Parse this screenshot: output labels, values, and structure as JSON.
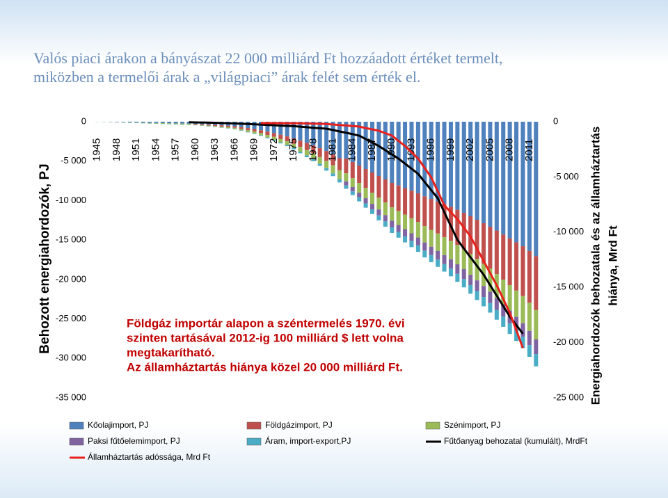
{
  "chart_data": {
    "type": "bar",
    "title": [
      "Valós piaci árakon a bányászat 22 000 milliárd Ft hozzáadott értéket termelt,",
      "miközben a termelői árak a „világpiaci” árak felét sem érték el."
    ],
    "y_label": "Behozott energiahordozók, PJ",
    "y2_label": [
      "Energiahordozók behozatala és az államháztartás",
      "hiánya, Mrd Ft"
    ],
    "annotation": [
      "Földgáz importár alapon a széntermelés 1970. évi",
      "szinten tartásával 2012-ig 100 milliárd $ lett volna",
      "megtakarítható.",
      "Az államháztartás hiánya közel 20 000 milliárd Ft."
    ],
    "categories": [
      "1945",
      null,
      null,
      "1948",
      null,
      null,
      "1951",
      null,
      null,
      "1954",
      null,
      null,
      "1957",
      null,
      null,
      "1960",
      null,
      null,
      "1963",
      null,
      null,
      "1966",
      null,
      null,
      "1969",
      null,
      null,
      "1972",
      null,
      null,
      "1975",
      null,
      null,
      "1978",
      null,
      null,
      "1981",
      null,
      null,
      "1984",
      null,
      null,
      "1987",
      null,
      null,
      "1990",
      null,
      null,
      "1993",
      null,
      null,
      "1996",
      null,
      null,
      "1999",
      null,
      null,
      "2002",
      null,
      null,
      "2005",
      null,
      null,
      "2008",
      null,
      null,
      "2011",
      null
    ],
    "ylim": [
      -35000,
      0
    ],
    "yticks": [
      0,
      {
        "value": -5000,
        "label": "-5 000"
      },
      {
        "value": -10000,
        "label": "-10 000"
      },
      {
        "value": -15000,
        "label": "-15 000"
      },
      {
        "value": -20000,
        "label": "-20 000"
      },
      {
        "value": -25000,
        "label": "-25 000"
      },
      {
        "value": -30000,
        "label": "-30 000"
      },
      {
        "value": -35000,
        "label": "-35 000"
      }
    ],
    "y2lim": [
      -25000,
      0
    ],
    "y2ticks": [
      0,
      {
        "value": -5000,
        "label": "-5 000"
      },
      {
        "value": -10000,
        "label": "-10 000"
      },
      {
        "value": -15000,
        "label": "-15 000"
      },
      {
        "value": -20000,
        "label": "-20 000"
      },
      {
        "value": -25000,
        "label": "-25 000"
      }
    ],
    "series": [
      {
        "name": "Kőolajimport, PJ",
        "color": "#4f81bd",
        "values": [
          -12,
          -24,
          -36,
          -54,
          -72,
          -90,
          -108,
          -126,
          -144,
          -162,
          -180,
          -198,
          -216,
          -234,
          -252,
          -270,
          -312,
          -360,
          -408,
          -462,
          -516,
          -576,
          -690,
          -810,
          -930,
          -1080,
          -1260,
          -1440,
          -1650,
          -1860,
          -2100,
          -2400,
          -2700,
          -3000,
          -3360,
          -3720,
          -4140,
          -4620,
          -4675,
          -5115,
          -5555,
          -5995,
          -6435,
          -6875,
          -7315,
          -7755,
          -8085,
          -8415,
          -8745,
          -9075,
          -9460,
          -9790,
          -10120,
          -10450,
          -10780,
          -11165,
          -11550,
          -11990,
          -12430,
          -12870,
          -13310,
          -13805,
          -14300,
          -14795,
          -15290,
          -15785,
          -16390,
          -17050
        ]
      },
      {
        "name": "Földgázimport, PJ",
        "color": "#c0504d",
        "values": [
          0,
          0,
          0,
          0,
          0,
          0,
          0,
          0,
          0,
          0,
          0,
          0,
          0,
          0,
          0,
          -90,
          -104,
          -120,
          -136,
          -154,
          -172,
          -192,
          -230,
          -270,
          -310,
          -360,
          -420,
          -480,
          -550,
          -620,
          -700,
          -800,
          -900,
          -1000,
          -1120,
          -1240,
          -1380,
          -1540,
          -1870,
          -2046,
          -2222,
          -2398,
          -2574,
          -2750,
          -2926,
          -3102,
          -3234,
          -3366,
          -3498,
          -3630,
          -3784,
          -3916,
          -4048,
          -4180,
          -4312,
          -4466,
          -4620,
          -4796,
          -4972,
          -5148,
          -5324,
          -5522,
          -5720,
          -5918,
          -6116,
          -6314,
          -6556,
          -6820
        ]
      },
      {
        "name": "Szénimport, PJ",
        "color": "#9bbb59",
        "values": [
          -6,
          -12,
          -18,
          -27,
          -36,
          -45,
          -54,
          -63,
          -72,
          -81,
          -90,
          -99,
          -108,
          -117,
          -126,
          -68,
          -78,
          -90,
          -102,
          -116,
          -129,
          -144,
          -172,
          -202,
          -232,
          -270,
          -315,
          -360,
          -412,
          -465,
          -525,
          -600,
          -675,
          -750,
          -840,
          -930,
          -1035,
          -1155,
          -1020,
          -1116,
          -1212,
          -1308,
          -1404,
          -1500,
          -1596,
          -1692,
          -1764,
          -1836,
          -1908,
          -1980,
          -2064,
          -2136,
          -2208,
          -2280,
          -2352,
          -2436,
          -2520,
          -2616,
          -2712,
          -2808,
          -2904,
          -3012,
          -3120,
          -3228,
          -3336,
          -3444,
          -3576,
          -3720
        ]
      },
      {
        "name": "Paksi fűtőelemimport, PJ",
        "color": "#8064a2",
        "values": [
          0,
          0,
          0,
          0,
          0,
          0,
          0,
          0,
          0,
          0,
          0,
          0,
          0,
          0,
          0,
          0,
          0,
          0,
          0,
          0,
          0,
          0,
          0,
          0,
          0,
          0,
          0,
          0,
          0,
          0,
          0,
          0,
          0,
          0,
          0,
          0,
          0,
          0,
          -510,
          -558,
          -606,
          -654,
          -702,
          -750,
          -798,
          -846,
          -882,
          -918,
          -954,
          -990,
          -1032,
          -1068,
          -1104,
          -1140,
          -1176,
          -1218,
          -1260,
          -1308,
          -1356,
          -1404,
          -1452,
          -1506,
          -1560,
          -1614,
          -1668,
          -1722,
          -1788,
          -1860
        ]
      },
      {
        "name": "Áram, import-export,PJ",
        "color": "#4bacc6",
        "values": [
          -2,
          -4,
          -6,
          -9,
          -12,
          -15,
          -18,
          -21,
          -24,
          -27,
          -30,
          -33,
          -36,
          -39,
          -42,
          -22,
          -26,
          -30,
          -34,
          -38,
          -43,
          -48,
          -58,
          -68,
          -78,
          -90,
          -105,
          -120,
          -138,
          -155,
          -175,
          -200,
          -225,
          -250,
          -280,
          -310,
          -345,
          -385,
          -425,
          -465,
          -505,
          -545,
          -585,
          -625,
          -665,
          -705,
          -735,
          -765,
          -795,
          -825,
          -860,
          -890,
          -920,
          -950,
          -980,
          -1015,
          -1050,
          -1090,
          -1130,
          -1170,
          -1210,
          -1255,
          -1300,
          -1345,
          -1390,
          -1435,
          -1490,
          -1550
        ]
      },
      {
        "name": "Fűtőanyag behozatal (kumulált), MrdFt",
        "color": "#000000",
        "type": "line",
        "axis": "y2",
        "values": [
          null,
          null,
          null,
          null,
          null,
          null,
          null,
          null,
          null,
          null,
          null,
          null,
          null,
          null,
          -50,
          -60,
          -70,
          -80,
          -100,
          -120,
          -140,
          -160,
          -180,
          -200,
          -230,
          -260,
          -290,
          -320,
          -350,
          -380,
          -400,
          -450,
          -500,
          -550,
          -590,
          -630,
          -750,
          -880,
          -1000,
          -1130,
          -1260,
          -1570,
          -1890,
          -2200,
          -2580,
          -2960,
          -3340,
          -3800,
          -4260,
          -4720,
          -5460,
          -6190,
          -6930,
          -8190,
          -9440,
          -10700,
          -11490,
          -12280,
          -13060,
          -13850,
          -14800,
          -15740,
          -16690,
          -17630,
          -18420,
          -19200,
          null,
          null
        ]
      },
      {
        "name": "Államháztartás adóssága, Mrd Ft",
        "color": "#e8201c",
        "type": "line",
        "axis": "y2",
        "values": [
          null,
          null,
          null,
          null,
          null,
          null,
          null,
          null,
          null,
          null,
          null,
          null,
          null,
          null,
          null,
          null,
          null,
          null,
          null,
          null,
          null,
          null,
          null,
          null,
          null,
          -120,
          -120,
          -125,
          -125,
          -130,
          -130,
          -145,
          -160,
          -170,
          -185,
          -200,
          -250,
          -300,
          -340,
          -390,
          -440,
          -570,
          -690,
          -820,
          -1040,
          -1260,
          -1730,
          -2200,
          -2770,
          -3340,
          -4190,
          -5040,
          -6300,
          -7560,
          -8190,
          -8820,
          -9600,
          -10390,
          -11500,
          -12600,
          -13700,
          -14800,
          -16050,
          -17300,
          -18900,
          -20500,
          null,
          null
        ]
      }
    ]
  }
}
